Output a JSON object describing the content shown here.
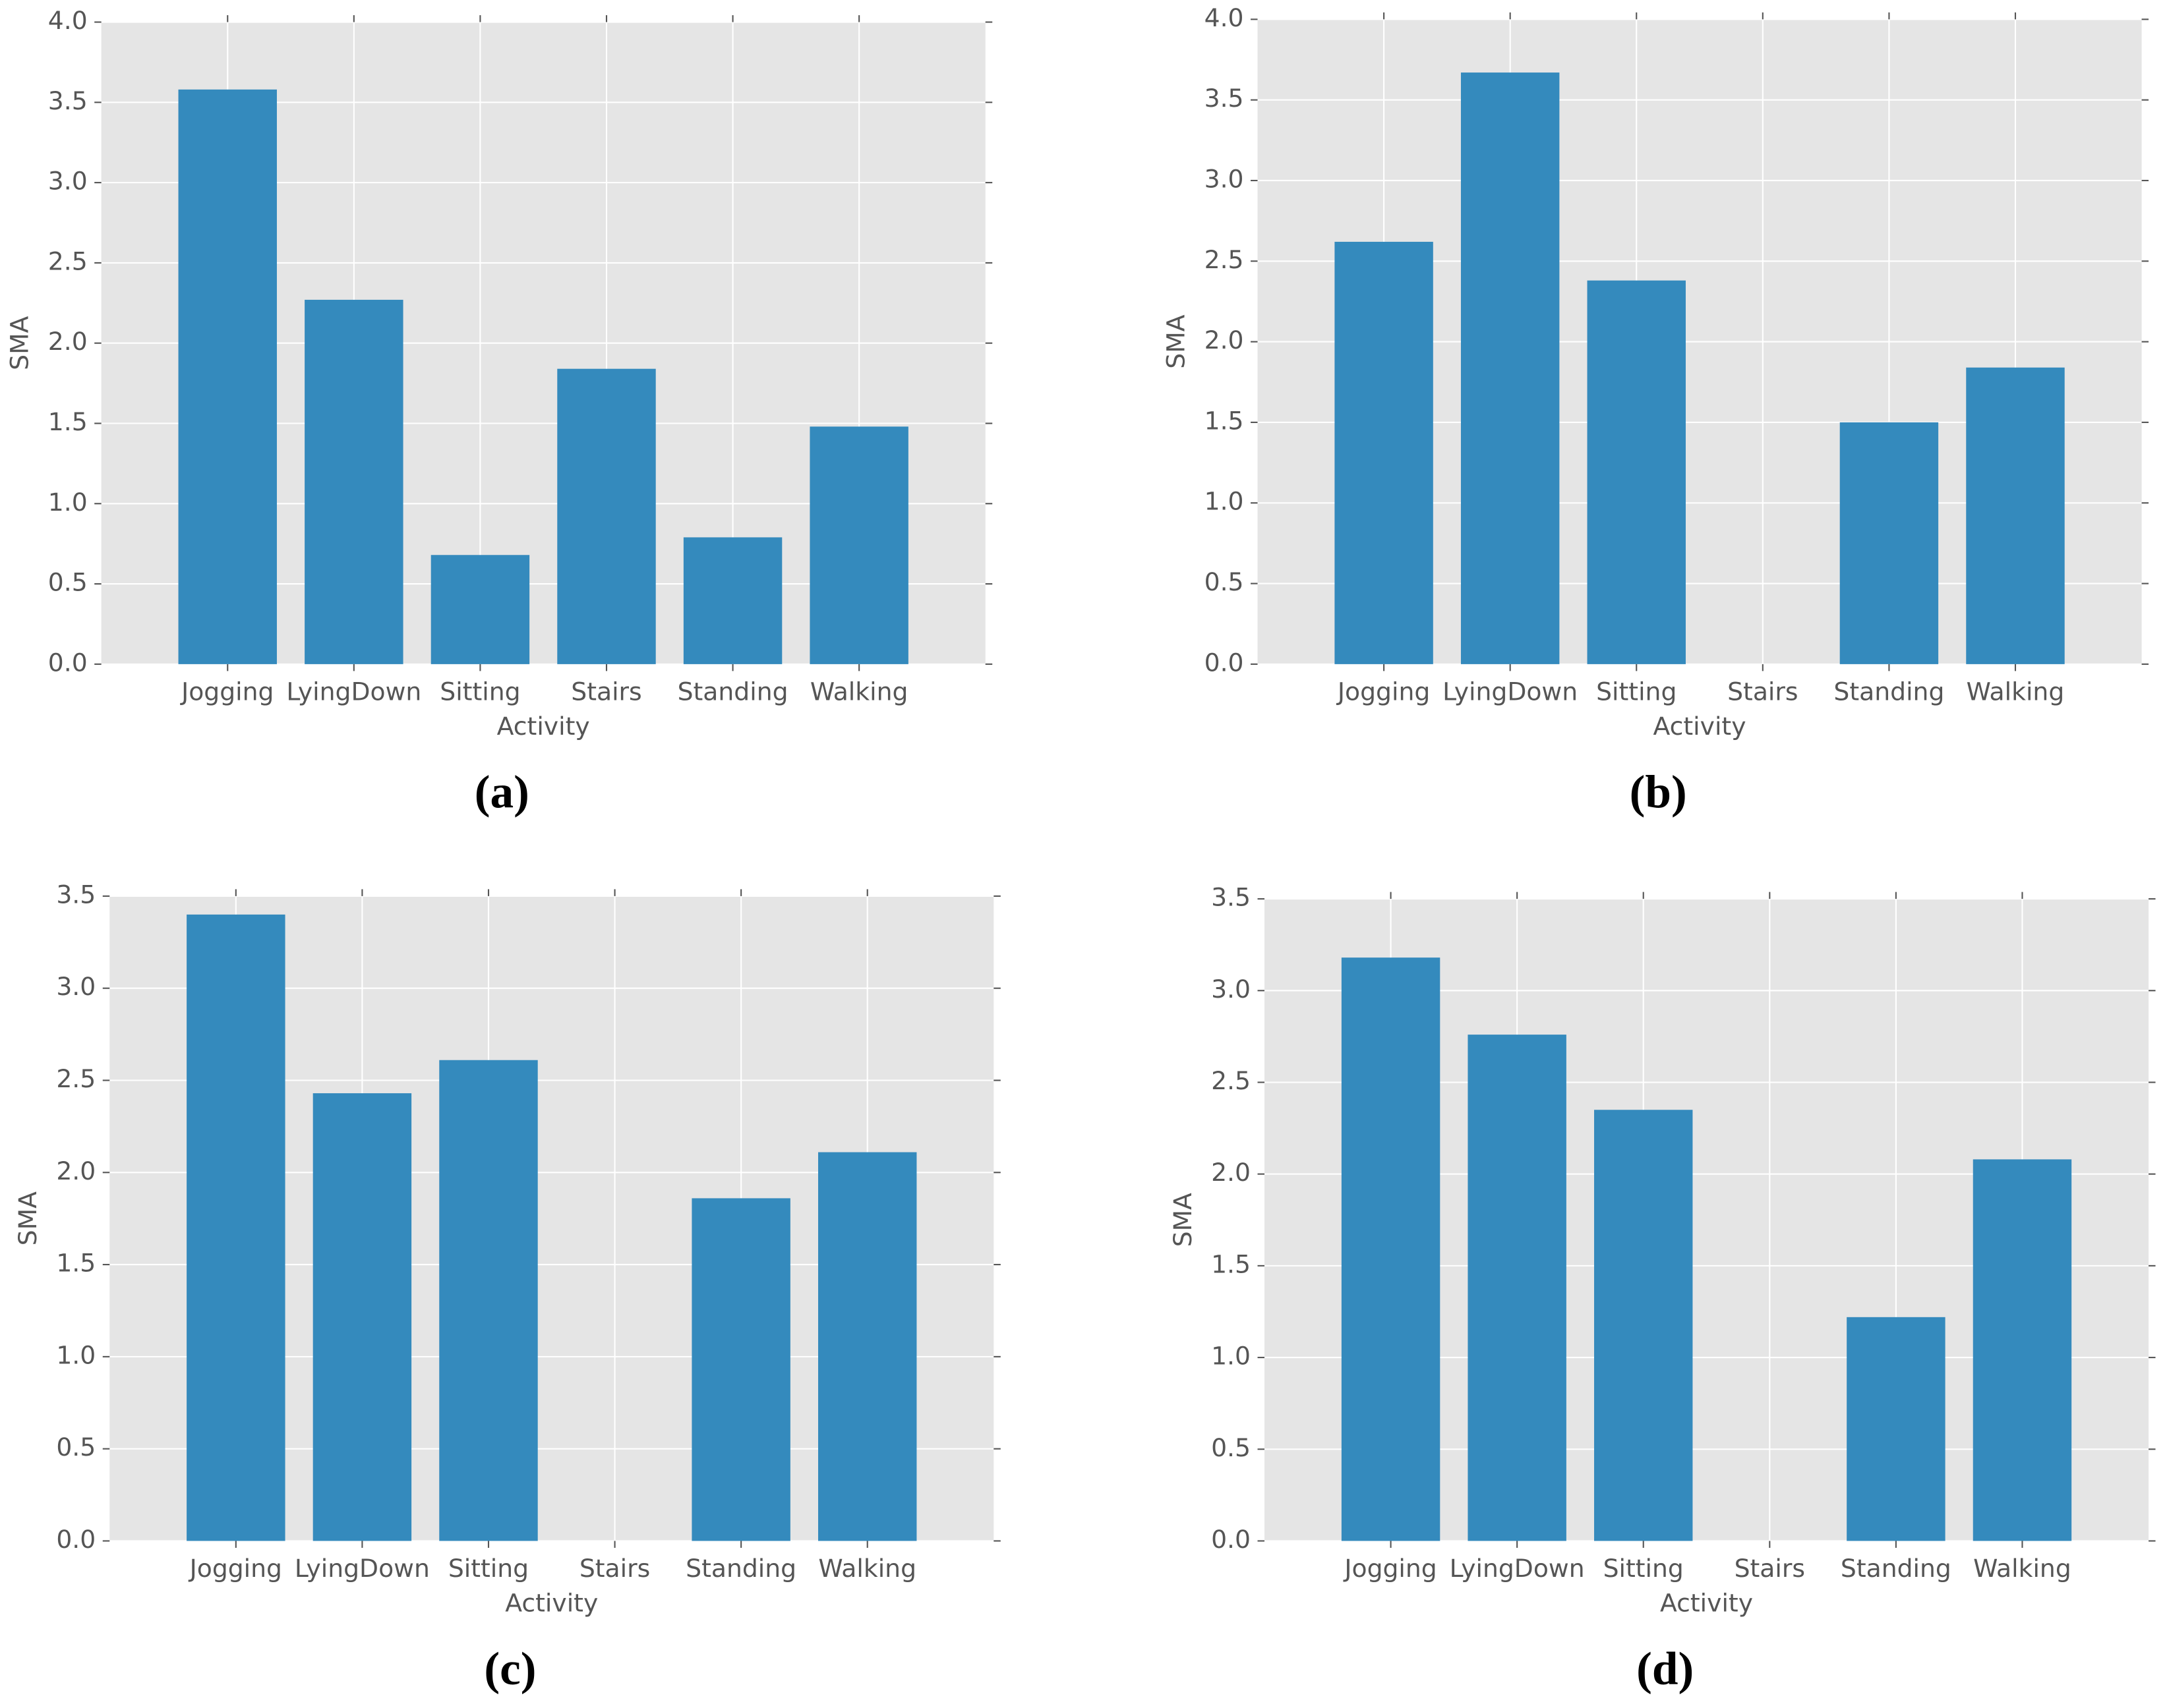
{
  "chart_data": [
    {
      "type": "bar",
      "title": "(a)",
      "xlabel": "Activity",
      "ylabel": "SMA",
      "categories": [
        "Jogging",
        "LyingDown",
        "Sitting",
        "Stairs",
        "Standing",
        "Walking"
      ],
      "values": [
        3.58,
        2.27,
        0.68,
        1.84,
        0.79,
        1.48
      ],
      "color": "#348abd",
      "ylim": [
        0,
        4
      ],
      "yticks": [
        {
          "value": 0,
          "label": "0.0"
        },
        0.5,
        {
          "value": 1,
          "label": "1.0"
        },
        1.5,
        {
          "value": 2,
          "label": "2.0"
        },
        2.5,
        {
          "value": 3,
          "label": "3.0"
        },
        3.5,
        {
          "value": 4,
          "label": "4.0"
        }
      ],
      "grid": true
    },
    {
      "type": "bar",
      "title": "(b)",
      "xlabel": "Activity",
      "ylabel": "SMA",
      "categories": [
        "Jogging",
        "LyingDown",
        "Sitting",
        "Stairs",
        "Standing",
        "Walking"
      ],
      "values": [
        2.62,
        3.67,
        2.38,
        null,
        1.5,
        1.84
      ],
      "color": "#348abd",
      "ylim": [
        0,
        4
      ],
      "yticks": [
        {
          "value": 0,
          "label": "0.0"
        },
        0.5,
        {
          "value": 1,
          "label": "1.0"
        },
        1.5,
        {
          "value": 2,
          "label": "2.0"
        },
        2.5,
        {
          "value": 3,
          "label": "3.0"
        },
        3.5,
        {
          "value": 4,
          "label": "4.0"
        }
      ],
      "grid": true
    },
    {
      "type": "bar",
      "title": "(c)",
      "xlabel": "Activity",
      "ylabel": "SMA",
      "categories": [
        "Jogging",
        "LyingDown",
        "Sitting",
        "Stairs",
        "Standing",
        "Walking"
      ],
      "values": [
        3.4,
        2.43,
        2.61,
        null,
        1.86,
        2.11
      ],
      "color": "#348abd",
      "ylim": [
        0,
        3.5
      ],
      "yticks": [
        {
          "value": 0,
          "label": "0.0"
        },
        0.5,
        {
          "value": 1,
          "label": "1.0"
        },
        1.5,
        {
          "value": 2,
          "label": "2.0"
        },
        2.5,
        {
          "value": 3,
          "label": "3.0"
        },
        3.5
      ],
      "grid": true
    },
    {
      "type": "bar",
      "title": "(d)",
      "xlabel": "Activity",
      "ylabel": "SMA",
      "categories": [
        "Jogging",
        "LyingDown",
        "Sitting",
        "Stairs",
        "Standing",
        "Walking"
      ],
      "values": [
        3.18,
        2.76,
        2.35,
        null,
        1.22,
        2.08
      ],
      "color": "#348abd",
      "ylim": [
        0,
        3.5
      ],
      "yticks": [
        {
          "value": 0,
          "label": "0.0"
        },
        0.5,
        {
          "value": 1,
          "label": "1.0"
        },
        1.5,
        {
          "value": 2,
          "label": "2.0"
        },
        2.5,
        {
          "value": 3,
          "label": "3.0"
        },
        3.5
      ],
      "grid": true
    }
  ]
}
